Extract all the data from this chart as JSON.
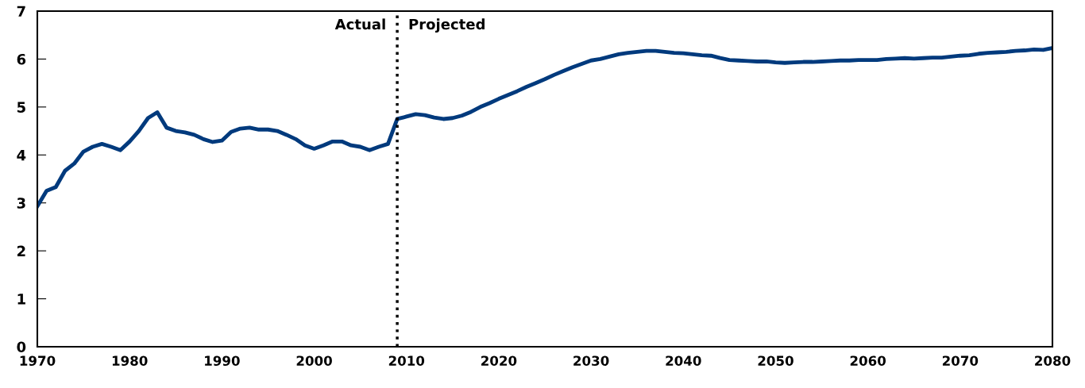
{
  "chart_data": {
    "type": "line",
    "x": [
      1970,
      1971,
      1972,
      1973,
      1974,
      1975,
      1976,
      1977,
      1978,
      1979,
      1980,
      1981,
      1982,
      1983,
      1984,
      1985,
      1986,
      1987,
      1988,
      1989,
      1990,
      1991,
      1992,
      1993,
      1994,
      1995,
      1996,
      1997,
      1998,
      1999,
      2000,
      2001,
      2002,
      2003,
      2004,
      2005,
      2006,
      2007,
      2008,
      2009,
      2010,
      2011,
      2012,
      2013,
      2014,
      2015,
      2016,
      2017,
      2018,
      2019,
      2020,
      2021,
      2022,
      2023,
      2024,
      2025,
      2026,
      2027,
      2028,
      2029,
      2030,
      2031,
      2032,
      2033,
      2034,
      2035,
      2036,
      2037,
      2038,
      2039,
      2040,
      2041,
      2042,
      2043,
      2044,
      2045,
      2046,
      2047,
      2048,
      2049,
      2050,
      2051,
      2052,
      2053,
      2054,
      2055,
      2056,
      2057,
      2058,
      2059,
      2060,
      2061,
      2062,
      2063,
      2064,
      2065,
      2066,
      2067,
      2068,
      2069,
      2070,
      2071,
      2072,
      2073,
      2074,
      2075,
      2076,
      2077,
      2078,
      2079,
      2080
    ],
    "series": [
      {
        "color": "#003a7d",
        "values": [
          2.93,
          3.25,
          3.33,
          3.67,
          3.82,
          4.07,
          4.17,
          4.23,
          4.17,
          4.1,
          4.28,
          4.5,
          4.77,
          4.89,
          4.57,
          4.5,
          4.47,
          4.42,
          4.33,
          4.27,
          4.3,
          4.48,
          4.55,
          4.57,
          4.53,
          4.53,
          4.5,
          4.42,
          4.33,
          4.2,
          4.13,
          4.2,
          4.28,
          4.28,
          4.2,
          4.17,
          4.1,
          4.17,
          4.23,
          4.75,
          4.8,
          4.85,
          4.83,
          4.78,
          4.75,
          4.77,
          4.82,
          4.9,
          5.0,
          5.08,
          5.17,
          5.25,
          5.33,
          5.42,
          5.5,
          5.58,
          5.67,
          5.75,
          5.83,
          5.9,
          5.97,
          6.0,
          6.05,
          6.1,
          6.13,
          6.15,
          6.17,
          6.17,
          6.15,
          6.13,
          6.12,
          6.1,
          6.08,
          6.07,
          6.02,
          5.98,
          5.97,
          5.96,
          5.95,
          5.95,
          5.93,
          5.92,
          5.93,
          5.94,
          5.94,
          5.95,
          5.96,
          5.97,
          5.97,
          5.98,
          5.98,
          5.98,
          6.0,
          6.01,
          6.02,
          6.01,
          6.02,
          6.03,
          6.03,
          6.05,
          6.07,
          6.08,
          6.11,
          6.13,
          6.14,
          6.15,
          6.17,
          6.18,
          6.2,
          6.19,
          6.23
        ]
      }
    ],
    "xlim": [
      1970,
      2080
    ],
    "xticks": [
      1970,
      1980,
      1990,
      2000,
      2010,
      2020,
      2030,
      2040,
      2050,
      2060,
      2070,
      2080
    ],
    "ylim": [
      0,
      7
    ],
    "yticks": [
      0,
      1,
      2,
      3,
      4,
      5,
      6,
      7
    ],
    "ref_lines": [
      {
        "axis": "x",
        "value": 2009,
        "color": "#000000",
        "line_style": "dotted"
      }
    ],
    "annotations": [
      {
        "text": "Actual",
        "x": 2009,
        "y": 6.7
      },
      {
        "text": "Projected",
        "x": 2009,
        "y": 6.7
      }
    ],
    "grid": false,
    "legend": false,
    "marker": "none",
    "line_style": "solid"
  }
}
